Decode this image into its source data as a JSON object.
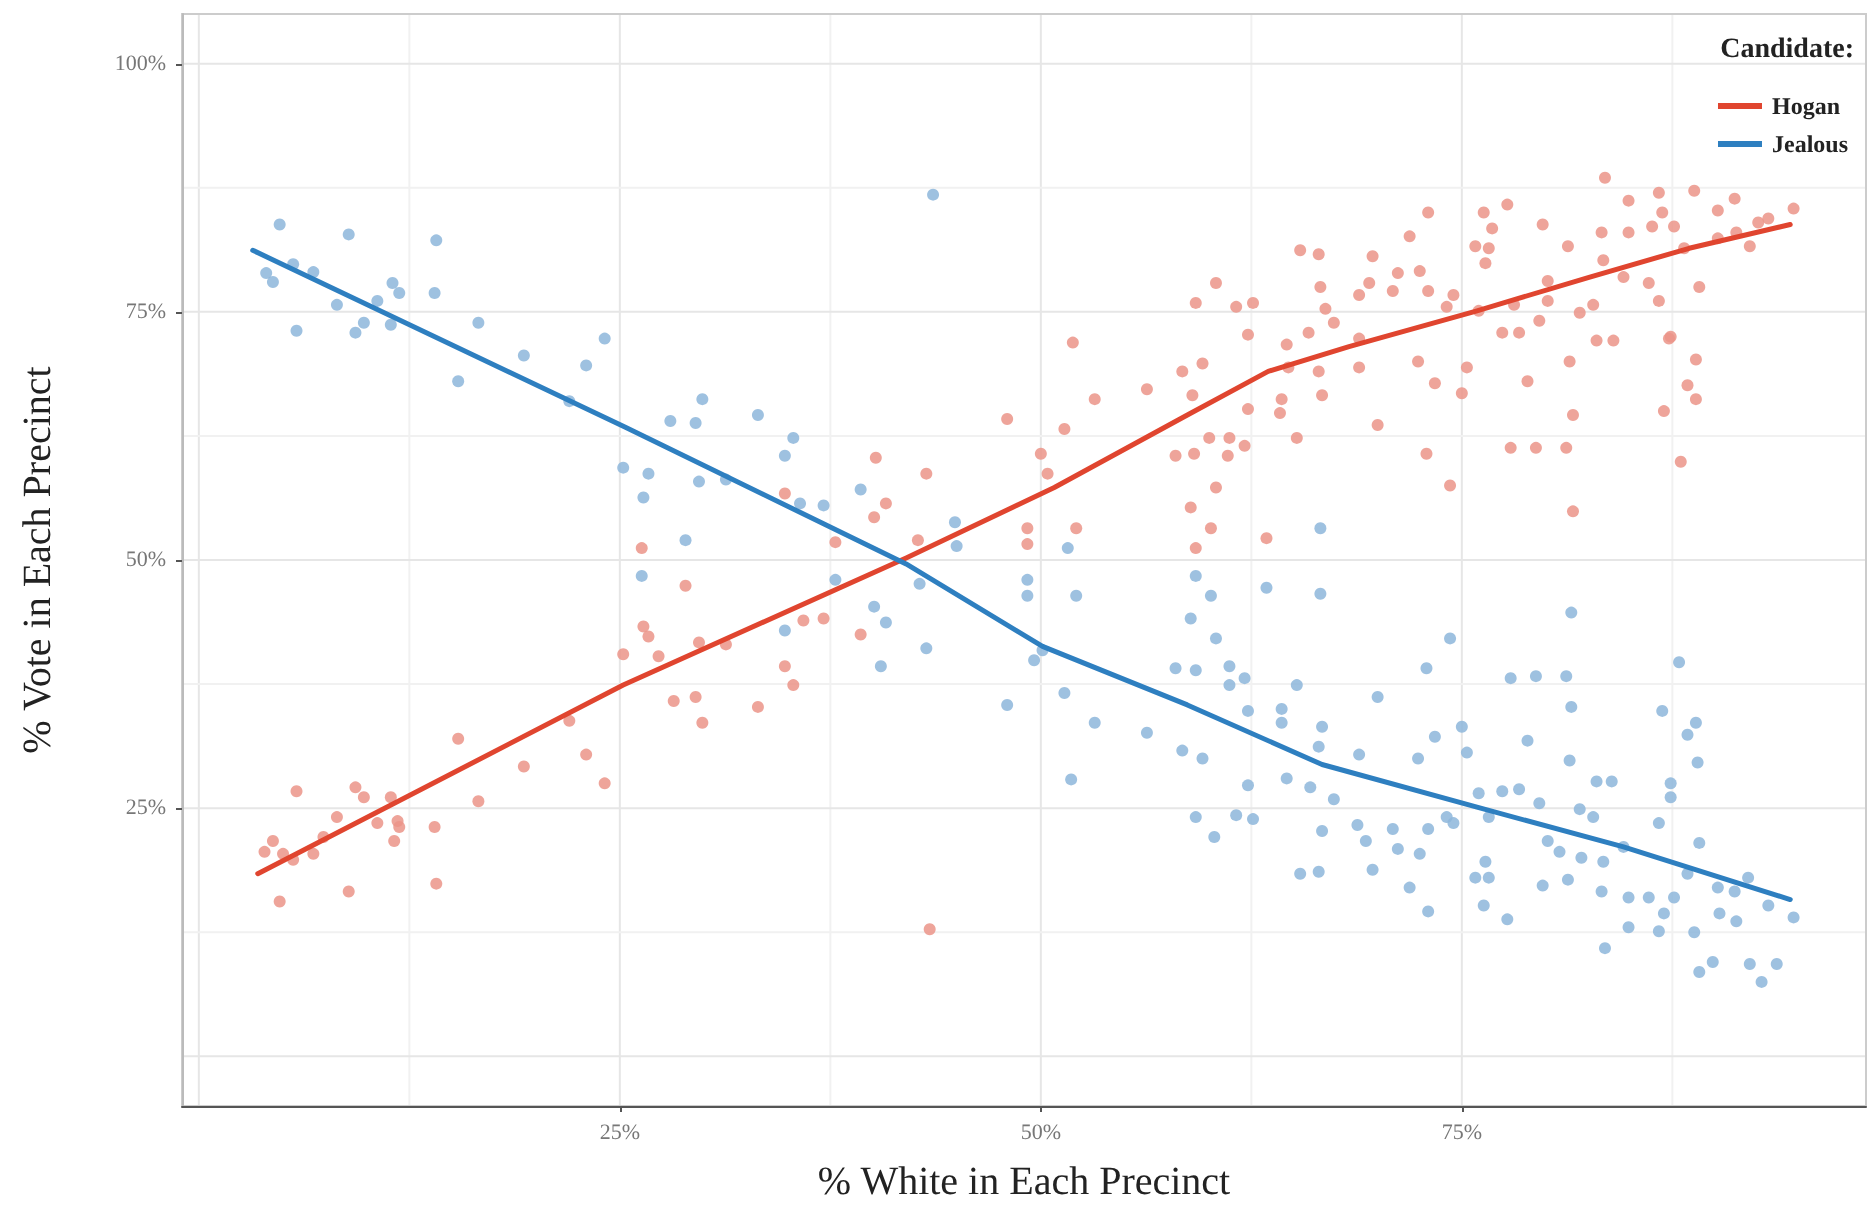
{
  "chart_data": {
    "type": "scatter",
    "xlabel": "% White in Each Precinct",
    "ylabel": "% Vote in Each Precinct",
    "legend_title": "Candidate:",
    "legend": "top right",
    "grid": true,
    "xlim": [
      -1,
      99
    ],
    "ylim": [
      -5,
      105
    ],
    "xticks": [
      {
        "value": 25,
        "label": "25%"
      },
      {
        "value": 50,
        "label": "50%"
      },
      {
        "value": 75,
        "label": "75%"
      }
    ],
    "yticks": [
      {
        "value": 25,
        "label": "25%"
      },
      {
        "value": 50,
        "label": "50%"
      },
      {
        "value": 75,
        "label": "75%"
      },
      {
        "value": 100,
        "label": "100%"
      }
    ],
    "series": [
      {
        "marker": "circle",
        "color": "#eb9488",
        "x": [
          4.8,
          3.9,
          4.4,
          5,
          5.6,
          5.8,
          6.8,
          7.4,
          8.2,
          8.9,
          9.3,
          9.8,
          10.6,
          11.4,
          11.6,
          11.8,
          11.9,
          14,
          14.1,
          15.4,
          16.6,
          19.3,
          22,
          23,
          24.1,
          25.2,
          26.4,
          26.7,
          27.3,
          28.2,
          28.9,
          29.5,
          29.7,
          29.9,
          31.3,
          33.2,
          34.8,
          35.3,
          35.9,
          37.1,
          39.3,
          43.4,
          26.3,
          34.8,
          37.8,
          40.2,
          40.8,
          40.1,
          43.2,
          42.7,
          48,
          50,
          50.4,
          49.2,
          49.2,
          51.4,
          51.9,
          52.1,
          53.2,
          56.3,
          58,
          58.4,
          59,
          58.9,
          59.2,
          59.6,
          59.1,
          59.2,
          60.4,
          60,
          60.1,
          60.4,
          61.1,
          61.2,
          61.6,
          62.1,
          62.3,
          62.3,
          62.6,
          63.4,
          64.2,
          64.3,
          64.6,
          65.2,
          64.7,
          65.4,
          65.9,
          66.5,
          66.5,
          66.6,
          66.7,
          66.9,
          67.4,
          68.9,
          68.9,
          68.9,
          69.5,
          69.7,
          70,
          70.9,
          71.2,
          71.9,
          72.4,
          72.5,
          72.9,
          73,
          73,
          73.4,
          74.3,
          74.5,
          74.1,
          75,
          75.3,
          75.8,
          76.3,
          76.6,
          76.4,
          76.8,
          76,
          77.4,
          77.7,
          77.9,
          78.4,
          78.1,
          78.9,
          79.4,
          79.8,
          80.1,
          79.6,
          80.1,
          81.2,
          81.3,
          81.4,
          81.6,
          81.6,
          82,
          82.8,
          83,
          83.3,
          83.4,
          83.5,
          84,
          84.6,
          84.9,
          84.9,
          86.1,
          86.3,
          86.7,
          86.9,
          86.7,
          87,
          87.4,
          87.3,
          87.6,
          88,
          88.2,
          88.4,
          88.8,
          88.9,
          88.9,
          89.1,
          90.2,
          90.2,
          91.2,
          91.3,
          92.1,
          92.6,
          93.2,
          94.7
        ],
        "values": [
          15.6,
          20.6,
          21.7,
          20.4,
          19.8,
          26.7,
          20.4,
          22.1,
          24.1,
          16.6,
          27.1,
          26.1,
          23.5,
          26.1,
          21.7,
          23.7,
          23.1,
          23.1,
          17.4,
          32,
          25.7,
          29.2,
          33.8,
          30.4,
          27.5,
          40.5,
          43.3,
          42.3,
          40.3,
          35.8,
          47.4,
          36.2,
          41.7,
          33.6,
          41.5,
          35.2,
          39.3,
          37.4,
          43.9,
          44.1,
          42.5,
          12.8,
          51.2,
          56.7,
          51.8,
          60.3,
          55.7,
          54.3,
          58.7,
          52,
          64.2,
          60.7,
          58.7,
          53.2,
          51.6,
          63.2,
          71.9,
          53.2,
          66.2,
          67.2,
          60.5,
          69,
          66.6,
          55.3,
          51.2,
          69.8,
          60.7,
          75.9,
          77.9,
          62.3,
          53.2,
          57.3,
          60.5,
          62.3,
          75.5,
          61.5,
          65.2,
          72.7,
          75.9,
          52.2,
          64.8,
          66.2,
          71.7,
          62.3,
          69.4,
          81.2,
          72.9,
          80.8,
          69,
          77.5,
          66.6,
          75.3,
          73.9,
          72.3,
          69.4,
          76.7,
          77.9,
          80.6,
          63.6,
          77.1,
          78.9,
          82.6,
          70,
          79.1,
          60.7,
          85,
          77.1,
          67.8,
          57.5,
          76.7,
          75.5,
          66.8,
          69.4,
          81.6,
          85,
          81.4,
          79.9,
          83.4,
          75.1,
          72.9,
          85.8,
          61.3,
          72.9,
          75.7,
          68,
          61.3,
          83.8,
          78.1,
          74.1,
          76.1,
          61.3,
          81.6,
          70,
          54.9,
          64.6,
          74.9,
          75.7,
          72.1,
          83,
          80.2,
          88.5,
          72.1,
          78.5,
          86.2,
          83,
          77.9,
          83.6,
          87,
          85,
          76.1,
          65,
          72.5,
          72.3,
          83.6,
          59.9,
          81.4,
          67.6,
          87.2,
          70.2,
          66.2,
          77.5,
          85.2,
          82.4,
          86.4,
          83,
          81.6,
          84,
          84.4,
          85.4
        ]
      },
      {
        "marker": "circle",
        "color": "#8db6da",
        "x": [
          4.8,
          4,
          4.4,
          5.6,
          6.8,
          5.8,
          8.9,
          8.2,
          9.3,
          9.8,
          10.6,
          11.5,
          11.4,
          11.9,
          14.1,
          14,
          16.6,
          15.4,
          19.3,
          24.1,
          23,
          22,
          25.2,
          26.4,
          26.7,
          28,
          29.5,
          29.9,
          33.2,
          29.7,
          31.3,
          34.8,
          35.3,
          35.7,
          37.1,
          39.3,
          26.3,
          28.9,
          37.8,
          43.6,
          42.8,
          34.8,
          40.1,
          40.8,
          40.5,
          43.2,
          44.9,
          45,
          49.2,
          49.2,
          51.6,
          52.1,
          59.2,
          60.1,
          63.4,
          66.6,
          66.6,
          50.1,
          49.6,
          48,
          53.2,
          51.4,
          51.8,
          56.3,
          58,
          58.9,
          60.4,
          59.2,
          58.4,
          59.6,
          59.2,
          60.3,
          61.2,
          61.2,
          62.1,
          62.3,
          62.3,
          61.6,
          62.6,
          64.3,
          64.3,
          64.6,
          65.2,
          65.4,
          66.5,
          66.7,
          66.5,
          66,
          66.7,
          67.4,
          68.9,
          68.8,
          69.3,
          69.7,
          70,
          70.9,
          71.2,
          71.9,
          72.4,
          72.5,
          72.9,
          73,
          73,
          73.4,
          74.1,
          74.5,
          74.3,
          75,
          75.3,
          76,
          76.4,
          75.8,
          76.6,
          76.3,
          76.6,
          77.7,
          77.9,
          78.4,
          77.4,
          78.9,
          79.4,
          79.6,
          80.1,
          79.8,
          80.8,
          81.2,
          81.3,
          81.5,
          81.5,
          81.4,
          82,
          82.1,
          82.8,
          83,
          83.3,
          83.4,
          83.9,
          83.5,
          84.6,
          84.9,
          84.9,
          86.1,
          86.7,
          86.9,
          86.7,
          87,
          87.4,
          87.4,
          87.6,
          87.9,
          88.4,
          88.4,
          88.9,
          89,
          88.8,
          89.1,
          89.1,
          89.9,
          90.2,
          90.3,
          91.2,
          91.3,
          92,
          92.1,
          92.8,
          93.2,
          93.7,
          94.7
        ],
        "values": [
          83.8,
          78.9,
          78,
          79.8,
          79,
          73.1,
          82.8,
          75.7,
          72.9,
          73.9,
          76.1,
          77.9,
          73.7,
          76.9,
          82.2,
          76.9,
          73.9,
          68,
          70.6,
          72.3,
          69.6,
          66,
          59.3,
          56.3,
          58.7,
          64,
          63.8,
          66.2,
          64.6,
          57.9,
          58.1,
          60.5,
          62.3,
          55.7,
          55.5,
          57.1,
          48.4,
          52,
          48,
          86.8,
          47.6,
          42.9,
          45.3,
          43.7,
          39.3,
          41.1,
          53.8,
          51.4,
          48,
          46.4,
          51.2,
          46.4,
          48.4,
          46.4,
          47.2,
          53.2,
          46.6,
          40.9,
          39.9,
          35.4,
          33.6,
          36.6,
          27.9,
          32.6,
          39.1,
          44.1,
          42.1,
          38.9,
          30.8,
          30,
          24.1,
          22.1,
          39.3,
          37.4,
          38.1,
          34.8,
          27.3,
          24.3,
          23.9,
          35,
          33.6,
          28,
          37.4,
          18.4,
          18.6,
          33.2,
          31.2,
          27.1,
          22.7,
          25.9,
          30.4,
          23.3,
          21.7,
          18.8,
          36.2,
          22.9,
          20.9,
          17,
          30,
          20.4,
          39.1,
          14.6,
          22.9,
          32.2,
          24.1,
          23.5,
          42.1,
          33.2,
          30.6,
          26.5,
          19.6,
          18,
          18,
          15.2,
          24.1,
          13.8,
          38.1,
          26.9,
          26.7,
          31.8,
          38.3,
          25.5,
          21.7,
          17.2,
          20.6,
          38.3,
          17.8,
          44.7,
          35.2,
          29.8,
          24.9,
          20,
          24.1,
          27.7,
          16.6,
          19.6,
          27.7,
          10.9,
          21.1,
          16,
          13,
          16,
          23.5,
          34.8,
          12.6,
          14.4,
          26.1,
          27.5,
          16,
          39.7,
          32.4,
          18.4,
          33.6,
          29.6,
          12.5,
          21.5,
          8.5,
          9.5,
          17,
          14.4,
          16.6,
          13.6,
          18,
          9.3,
          7.5,
          15.2,
          9.3,
          14
        ]
      },
      {
        "type": "line",
        "marker": "none",
        "name": "Hogan",
        "color": "#e0452f",
        "x": [
          3.5,
          25.2,
          42,
          50.8,
          58.7,
          63.5,
          68.3,
          75.9,
          82.6,
          88.5,
          94.5
        ],
        "values": [
          18.4,
          37.4,
          50.2,
          57.3,
          64.6,
          69,
          71.5,
          75.1,
          78.5,
          81.4,
          83.8
        ]
      },
      {
        "type": "line",
        "marker": "none",
        "name": "Jealous",
        "color": "#2e7fc0",
        "x": [
          3.2,
          25.3,
          42,
          50.1,
          58.7,
          66.7,
          75.9,
          84.6,
          94.5
        ],
        "values": [
          81.2,
          63.4,
          49.6,
          41.3,
          35.4,
          29.4,
          25.1,
          21.1,
          15.8
        ]
      }
    ]
  }
}
